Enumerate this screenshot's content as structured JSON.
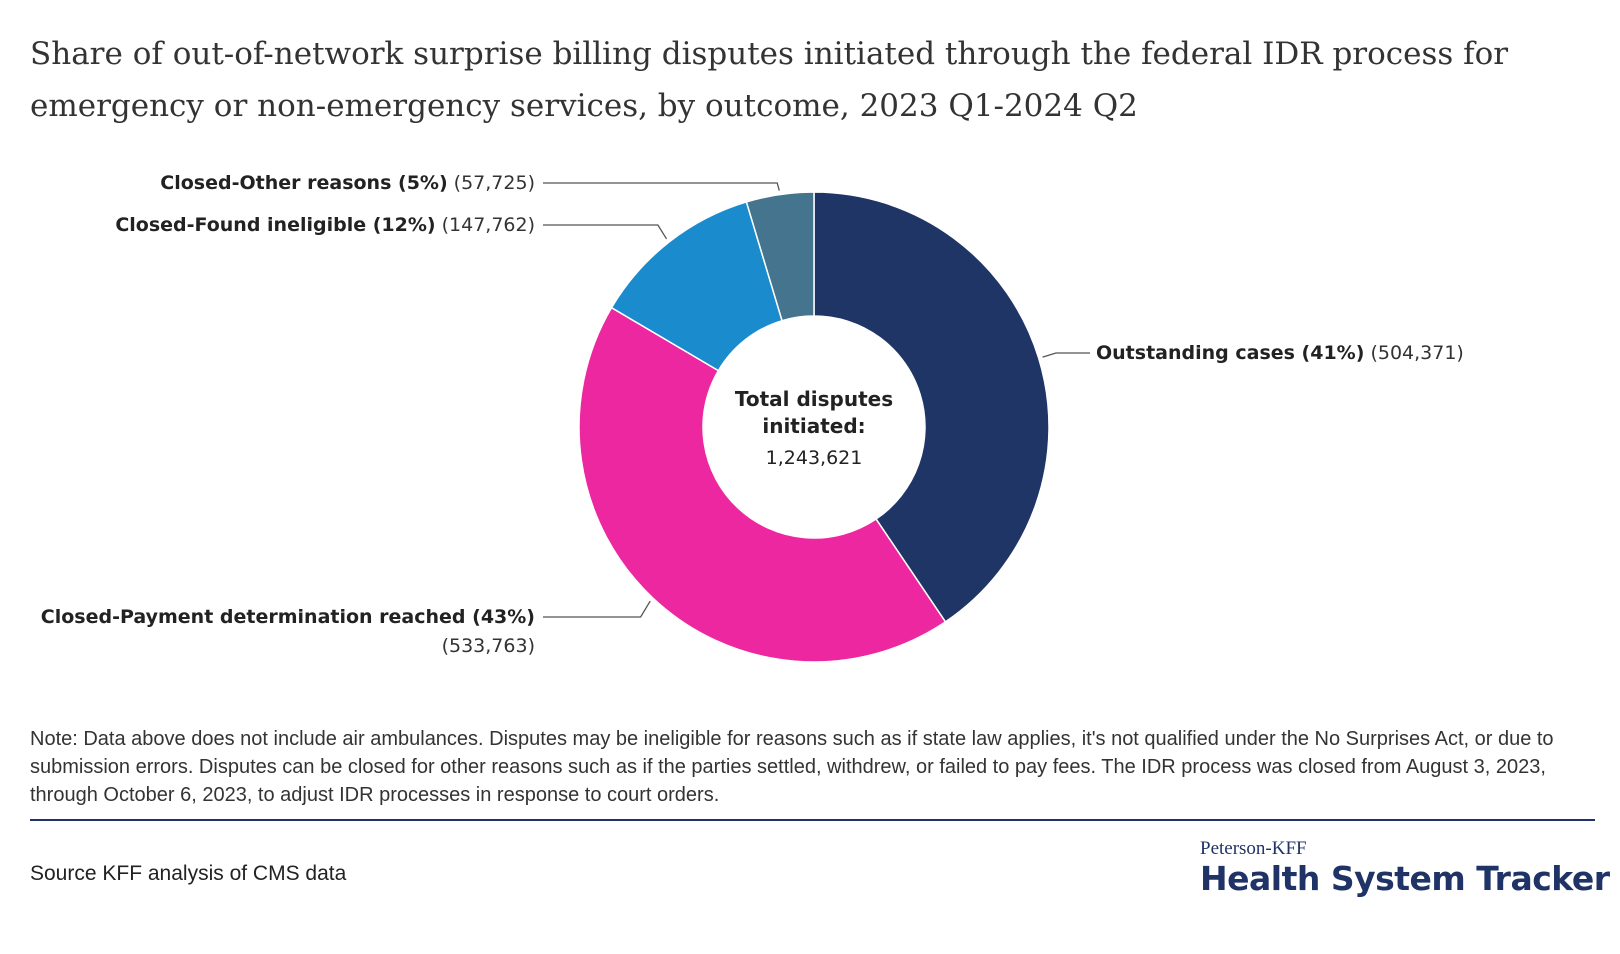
{
  "title": "Share of out-of-network surprise billing disputes initiated through the federal IDR process for emergency or non-emergency services, by outcome, 2023 Q1-2024 Q2",
  "chart_data": {
    "type": "pie",
    "variant": "donut",
    "center_label": {
      "line1": "Total disputes",
      "line2": "initiated:",
      "value": "1,243,621"
    },
    "total": 1243621,
    "slices": [
      {
        "name": "Outstanding cases",
        "percent_label": "(41%)",
        "value": 504371,
        "value_label": "(504,371)",
        "color": "#1f3566"
      },
      {
        "name": "Closed-Payment determination reached",
        "percent_label": "(43%)",
        "value": 533763,
        "value_label": "(533,763)",
        "color": "#ec27a0"
      },
      {
        "name": "Closed-Found ineligible",
        "percent_label": "(12%)",
        "value": 147762,
        "value_label": "(147,762)",
        "color": "#1a8bcd"
      },
      {
        "name": "Closed-Other reasons",
        "percent_label": "(5%)",
        "value": 57725,
        "value_label": "(57,725)",
        "color": "#45748f"
      }
    ]
  },
  "note": "Note: Data above does not include air ambulances. Disputes may be ineligible for reasons such as if state law applies, it's not qualified under the No Surprises Act, or due to submission errors. Disputes can be closed for other reasons such as if the parties settled, withdrew, or failed to pay fees. The IDR process was closed from August 3, 2023, through October 6, 2023, to adjust IDR processes in response to court orders.",
  "source": "Source KFF analysis of CMS data",
  "brand": {
    "sub": "Peterson-KFF",
    "main": "Health System Tracker",
    "color": "#1f3366"
  }
}
